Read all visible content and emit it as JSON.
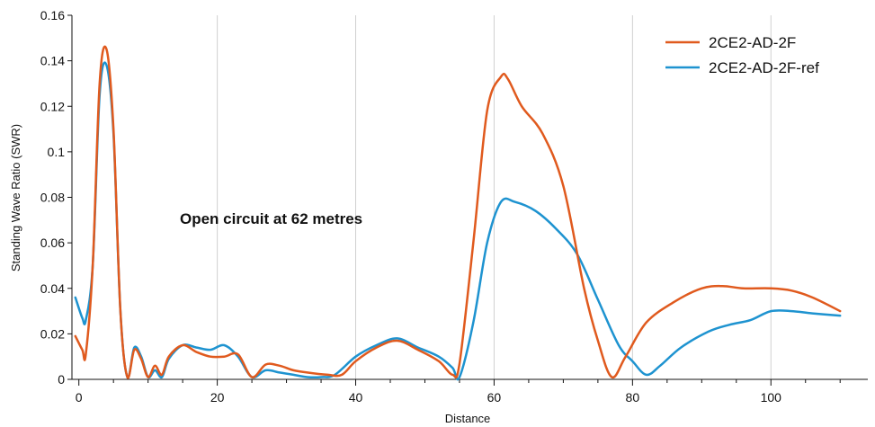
{
  "chart_data": {
    "type": "line",
    "xlabel": "Distance",
    "ylabel": "Standing Wave Ratio (SWR)",
    "xlim": [
      -1,
      114
    ],
    "ylim": [
      0,
      0.16
    ],
    "x_ticks": [
      0,
      20,
      40,
      60,
      80,
      100
    ],
    "y_ticks": [
      0,
      0.02,
      0.04,
      0.06,
      0.08,
      0.1,
      0.12,
      0.14,
      0.16
    ],
    "y_tick_labels": [
      "0",
      "0.02",
      "0.04",
      "0.06",
      "0.08",
      "0.1",
      "0.12",
      "0.14",
      "0.16"
    ],
    "grid": "vertical",
    "legend_position": "top-right",
    "annotation": {
      "text": "Open circuit at 62 metres",
      "x": 15,
      "y": 0.07
    },
    "series": [
      {
        "name": "2CE2-AD-2F",
        "color": "#e05a1e",
        "points": [
          [
            -0.5,
            0.019
          ],
          [
            0.5,
            0.013
          ],
          [
            1,
            0.011
          ],
          [
            2,
            0.05
          ],
          [
            3,
            0.13
          ],
          [
            4,
            0.145
          ],
          [
            5,
            0.11
          ],
          [
            6,
            0.03
          ],
          [
            7,
            0.001
          ],
          [
            8,
            0.013
          ],
          [
            9,
            0.009
          ],
          [
            10,
            0.001
          ],
          [
            11,
            0.006
          ],
          [
            12,
            0.002
          ],
          [
            13,
            0.01
          ],
          [
            15,
            0.015
          ],
          [
            17,
            0.012
          ],
          [
            19,
            0.01
          ],
          [
            21,
            0.01
          ],
          [
            23,
            0.011
          ],
          [
            25,
            0.001
          ],
          [
            27,
            0.0065
          ],
          [
            29,
            0.006
          ],
          [
            31,
            0.004
          ],
          [
            33,
            0.003
          ],
          [
            36,
            0.002
          ],
          [
            38,
            0.002
          ],
          [
            40,
            0.008
          ],
          [
            43,
            0.014
          ],
          [
            46,
            0.017
          ],
          [
            49,
            0.013
          ],
          [
            52,
            0.008
          ],
          [
            54,
            0.002
          ],
          [
            55,
            0.007
          ],
          [
            57,
            0.06
          ],
          [
            59,
            0.118
          ],
          [
            61,
            0.133
          ],
          [
            62,
            0.132
          ],
          [
            64,
            0.12
          ],
          [
            67,
            0.108
          ],
          [
            70,
            0.085
          ],
          [
            73,
            0.04
          ],
          [
            75,
            0.017
          ],
          [
            77,
            0.001
          ],
          [
            79,
            0.01
          ],
          [
            82,
            0.025
          ],
          [
            86,
            0.034
          ],
          [
            90,
            0.04
          ],
          [
            93,
            0.041
          ],
          [
            96,
            0.04
          ],
          [
            100,
            0.04
          ],
          [
            103,
            0.039
          ],
          [
            106,
            0.036
          ],
          [
            110,
            0.03
          ]
        ]
      },
      {
        "name": "2CE2-AD-2F-ref",
        "color": "#1e93d0",
        "points": [
          [
            -0.5,
            0.036
          ],
          [
            0.5,
            0.027
          ],
          [
            1,
            0.026
          ],
          [
            2,
            0.05
          ],
          [
            3,
            0.125
          ],
          [
            4,
            0.138
          ],
          [
            5,
            0.108
          ],
          [
            6,
            0.03
          ],
          [
            7,
            0.001
          ],
          [
            8,
            0.014
          ],
          [
            9,
            0.01
          ],
          [
            10,
            0.001
          ],
          [
            11,
            0.004
          ],
          [
            12,
            0.001
          ],
          [
            13,
            0.009
          ],
          [
            15,
            0.015
          ],
          [
            17,
            0.014
          ],
          [
            19,
            0.013
          ],
          [
            21,
            0.015
          ],
          [
            23,
            0.01
          ],
          [
            25,
            0.001
          ],
          [
            27,
            0.004
          ],
          [
            29,
            0.003
          ],
          [
            31,
            0.002
          ],
          [
            33,
            0.001
          ],
          [
            35,
            0.001
          ],
          [
            37,
            0.002
          ],
          [
            40,
            0.01
          ],
          [
            43,
            0.015
          ],
          [
            46,
            0.018
          ],
          [
            49,
            0.014
          ],
          [
            52,
            0.01
          ],
          [
            54,
            0.005
          ],
          [
            55,
            0.001
          ],
          [
            57,
            0.025
          ],
          [
            59,
            0.06
          ],
          [
            61,
            0.078
          ],
          [
            63,
            0.078
          ],
          [
            66,
            0.074
          ],
          [
            69,
            0.066
          ],
          [
            72,
            0.055
          ],
          [
            75,
            0.035
          ],
          [
            78,
            0.015
          ],
          [
            80,
            0.008
          ],
          [
            82,
            0.002
          ],
          [
            84,
            0.006
          ],
          [
            87,
            0.014
          ],
          [
            91,
            0.021
          ],
          [
            94,
            0.024
          ],
          [
            97,
            0.026
          ],
          [
            100,
            0.03
          ],
          [
            103,
            0.03
          ],
          [
            106,
            0.029
          ],
          [
            110,
            0.028
          ]
        ]
      }
    ]
  }
}
